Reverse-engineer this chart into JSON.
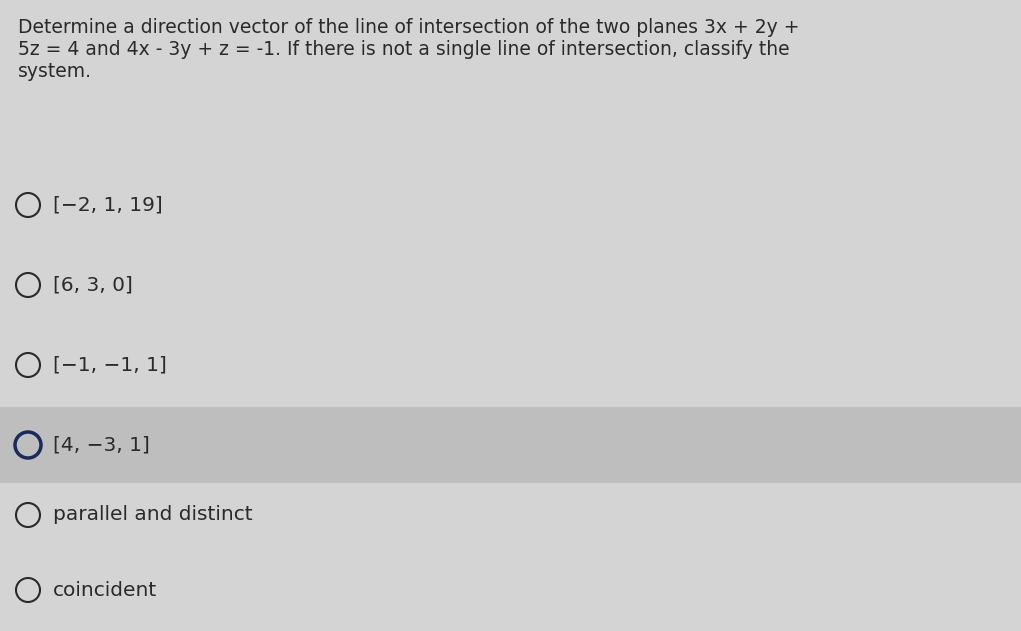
{
  "question_lines": [
    "Determine a direction vector of the line of intersection of the two planes 3x + 2y +",
    "5z = 4 and 4x - 3y + z = -1. If there is not a single line of intersection, classify the",
    "system."
  ],
  "options": [
    "[−2, 1, 19]",
    "[6, 3, 0]",
    "[−1, −1, 1]",
    "[4, −3, 1]",
    "parallel and distinct",
    "coincident"
  ],
  "highlighted_option_index": 3,
  "bg_color": "#d4d4d4",
  "highlight_color": "#bebebe",
  "text_color": "#2a2a2a",
  "highlight_circle_color": "#1a2a5a",
  "question_fontsize": 13.5,
  "option_fontsize": 14.5,
  "fig_width": 10.21,
  "fig_height": 6.31,
  "dpi": 100
}
